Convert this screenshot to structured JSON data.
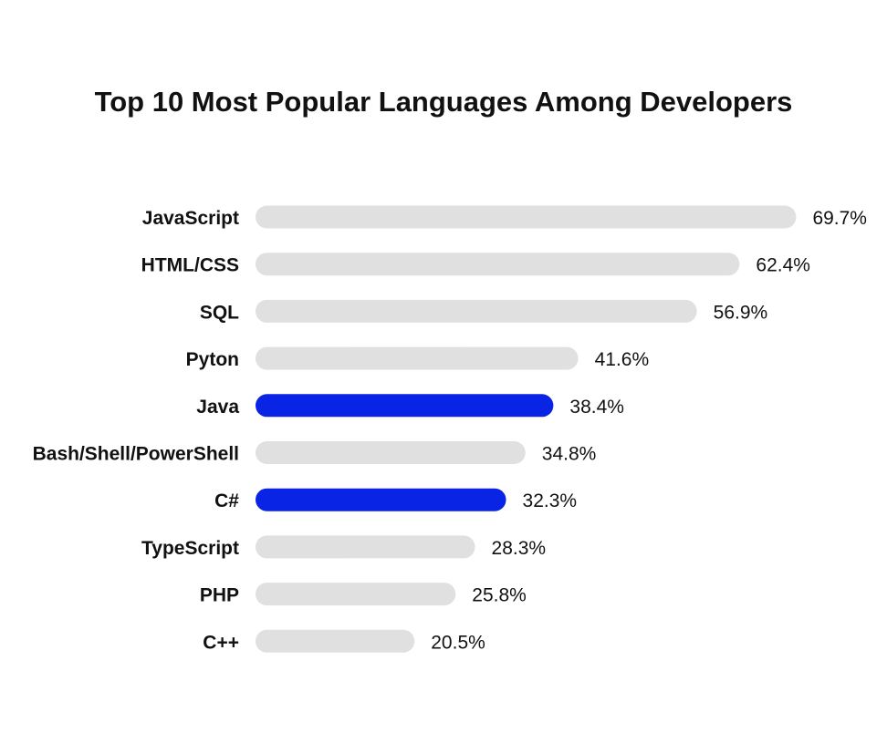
{
  "chart_data": {
    "type": "bar",
    "orientation": "horizontal",
    "title": "Top 10 Most Popular Languages Among Developers",
    "categories": [
      "JavaScript",
      "HTML/CSS",
      "SQL",
      "Pyton",
      "Java",
      "Bash/Shell/PowerShell",
      "C#",
      "TypeScript",
      "PHP",
      "C++"
    ],
    "values": [
      69.7,
      62.4,
      56.9,
      41.6,
      38.4,
      34.8,
      32.3,
      28.3,
      25.8,
      20.5
    ],
    "value_labels": [
      "69.7%",
      "62.4%",
      "56.9%",
      "41.6%",
      "38.4%",
      "34.8%",
      "32.3%",
      "28.3%",
      "25.8%",
      "20.5%"
    ],
    "highlighted": [
      false,
      false,
      false,
      false,
      true,
      false,
      true,
      false,
      false,
      false
    ],
    "unit": "%",
    "xlabel": "",
    "ylabel": "",
    "grid": false,
    "legend": "none",
    "colors": {
      "bar": "#e0e0e0",
      "highlight": "#0a24e6",
      "text": "#111111"
    }
  }
}
